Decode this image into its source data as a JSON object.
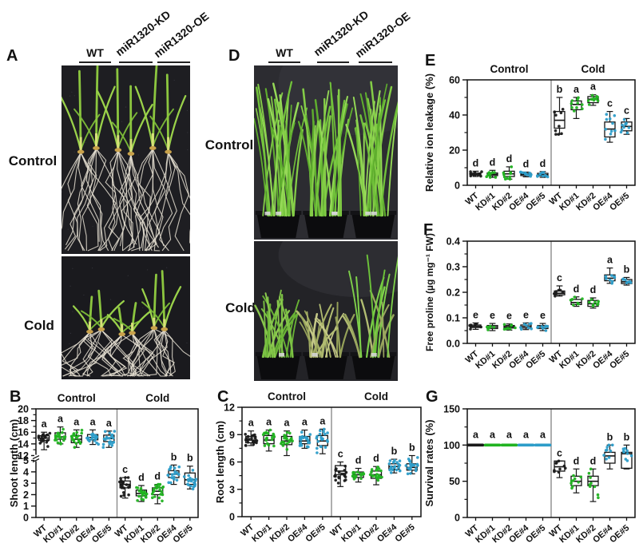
{
  "palette": {
    "wt": "#1a1a1a",
    "kd": "#21b321",
    "oe": "#2d9dc9",
    "divider": "#8c8c8c"
  },
  "panels": {
    "A": {
      "letter": "A",
      "col_labels": [
        "WT",
        "miR1320-KD",
        "miR1320-OE"
      ],
      "row_labels": [
        "Control",
        "Cold"
      ]
    },
    "B": {
      "letter": "B"
    },
    "C": {
      "letter": "C"
    },
    "D": {
      "letter": "D",
      "col_labels": [
        "WT",
        "miR1320-KD",
        "miR1320-OE"
      ],
      "row_labels": [
        "Control",
        "Cold"
      ]
    },
    "E": {
      "letter": "E"
    },
    "F": {
      "letter": "F"
    },
    "G": {
      "letter": "G"
    }
  },
  "chart_data": [
    {
      "panel": "B",
      "type": "box",
      "ylabel": "Shoot length (cm)",
      "headers": [
        "Control",
        "Cold"
      ],
      "axis": {
        "broken": true,
        "lower": {
          "min": 0,
          "max": 5,
          "ticks": [
            0,
            1,
            2,
            3,
            4,
            5
          ]
        },
        "upper": {
          "min": 12,
          "max": 20,
          "ticks": [
            12,
            14,
            16,
            18,
            20
          ],
          "minors": [
            13,
            15,
            17,
            19
          ]
        }
      },
      "categories": [
        "WT",
        "KD#1",
        "KD#2",
        "OE#4",
        "OE#5"
      ],
      "colors": [
        "wt",
        "kd",
        "kd",
        "oe",
        "oe"
      ],
      "n_points": 20,
      "groups": [
        {
          "name": "Control",
          "letters": [
            "a",
            "a",
            "a",
            "a",
            "a"
          ],
          "boxes": [
            [
              13.0,
              14.6,
              15.0,
              15.4,
              16.0
            ],
            [
              14.0,
              14.8,
              15.2,
              15.9,
              16.9
            ],
            [
              13.4,
              14.2,
              14.8,
              15.4,
              16.4
            ],
            [
              13.9,
              14.7,
              15.1,
              15.6,
              16.4
            ],
            [
              13.4,
              14.4,
              14.9,
              15.5,
              16.2
            ]
          ]
        },
        {
          "name": "Cold",
          "letters": [
            "c",
            "d",
            "d",
            "b",
            "b"
          ],
          "boxes": [
            [
              1.7,
              2.6,
              2.9,
              3.2,
              3.5
            ],
            [
              1.4,
              1.9,
              2.1,
              2.4,
              2.8
            ],
            [
              1.2,
              2.0,
              2.3,
              2.6,
              2.9
            ],
            [
              2.9,
              3.5,
              3.8,
              4.1,
              4.6
            ],
            [
              2.5,
              2.9,
              3.3,
              3.9,
              4.5
            ]
          ]
        }
      ]
    },
    {
      "panel": "C",
      "type": "box",
      "ylabel": "Root length (cm)",
      "headers": [
        "Control",
        "Cold"
      ],
      "axis": {
        "min": 0,
        "max": 12,
        "ticks": [
          0,
          3,
          6,
          9,
          12
        ],
        "minors": [
          1.5,
          4.5,
          7.5,
          10.5
        ]
      },
      "categories": [
        "WT",
        "KD#1",
        "KD#2",
        "OE#4",
        "OE#5"
      ],
      "colors": [
        "wt",
        "kd",
        "kd",
        "oe",
        "oe"
      ],
      "n_points": 20,
      "groups": [
        {
          "name": "Control",
          "letters": [
            "a",
            "a",
            "a",
            "a",
            "a"
          ],
          "boxes": [
            [
              7.8,
              8.1,
              8.4,
              8.8,
              9.4
            ],
            [
              7.2,
              8.0,
              8.4,
              8.9,
              9.5
            ],
            [
              6.7,
              7.9,
              8.3,
              8.8,
              9.4
            ],
            [
              7.5,
              8.0,
              8.3,
              8.8,
              9.5
            ],
            [
              6.9,
              7.8,
              8.3,
              8.9,
              9.6
            ]
          ]
        },
        {
          "name": "Cold",
          "letters": [
            "c",
            "d",
            "d",
            "b",
            "b"
          ],
          "boxes": [
            [
              3.3,
              4.6,
              5.0,
              5.6,
              6.0
            ],
            [
              3.8,
              4.3,
              4.6,
              4.9,
              5.3
            ],
            [
              3.5,
              4.2,
              4.6,
              5.0,
              5.5
            ],
            [
              4.8,
              5.2,
              5.5,
              5.8,
              6.3
            ],
            [
              4.7,
              5.1,
              5.4,
              5.8,
              6.7
            ]
          ]
        }
      ]
    },
    {
      "panel": "E",
      "type": "box",
      "ylabel": "Relative ion leakage (%)",
      "headers": [
        "Control",
        "Cold"
      ],
      "axis": {
        "min": 0,
        "max": 60,
        "ticks": [
          0,
          20,
          40,
          60
        ],
        "minors": [
          10,
          30,
          50
        ]
      },
      "categories": [
        "WT",
        "KD#1",
        "KD#2",
        "OE#4",
        "OE#5"
      ],
      "colors": [
        "wt",
        "kd",
        "kd",
        "oe",
        "oe"
      ],
      "n_points": 10,
      "groups": [
        {
          "name": "Control",
          "letters": [
            "d",
            "d",
            "d",
            "d",
            "d"
          ],
          "boxes": [
            [
              5.0,
              5.8,
              6.3,
              7.0,
              8.0
            ],
            [
              4.5,
              5.5,
              6.2,
              7.0,
              8.5
            ],
            [
              3.5,
              5.0,
              6.5,
              8.0,
              10.5
            ],
            [
              4.8,
              5.5,
              6.2,
              6.8,
              7.5
            ],
            [
              4.5,
              5.3,
              6.0,
              6.8,
              7.8
            ]
          ]
        },
        {
          "name": "Cold",
          "letters": [
            "b",
            "a",
            "a",
            "c",
            "c"
          ],
          "boxes": [
            [
              29,
              32.5,
              37,
              42,
              50
            ],
            [
              38,
              43,
              46,
              48,
              50
            ],
            [
              45.5,
              47,
              49,
              50.5,
              51.5
            ],
            [
              24.5,
              27.5,
              32,
              36,
              42
            ],
            [
              29,
              31,
              33.5,
              36,
              38
            ]
          ]
        }
      ]
    },
    {
      "panel": "F",
      "type": "box",
      "ylabel": "Free proline (µg mg⁻¹ FW)",
      "headers": null,
      "axis": {
        "min": 0,
        "max": 0.4,
        "ticks": [
          0,
          0.1,
          0.2,
          0.3,
          0.4
        ],
        "minors": [
          0.05,
          0.15,
          0.25,
          0.35
        ],
        "decimals": 1
      },
      "categories": [
        "WT",
        "KD#1",
        "KD#2",
        "OE#4",
        "OE#5"
      ],
      "colors": [
        "wt",
        "kd",
        "kd",
        "oe",
        "oe"
      ],
      "n_points": 8,
      "groups": [
        {
          "name": "Control",
          "letters": [
            "e",
            "e",
            "e",
            "e",
            "e"
          ],
          "boxes": [
            [
              0.055,
              0.062,
              0.067,
              0.072,
              0.08
            ],
            [
              0.05,
              0.058,
              0.064,
              0.07,
              0.078
            ],
            [
              0.052,
              0.06,
              0.065,
              0.07,
              0.076
            ],
            [
              0.054,
              0.06,
              0.066,
              0.072,
              0.08
            ],
            [
              0.05,
              0.058,
              0.064,
              0.07,
              0.078
            ]
          ]
        },
        {
          "name": "Cold",
          "letters": [
            "c",
            "d",
            "d",
            "a",
            "b"
          ],
          "boxes": [
            [
              0.185,
              0.19,
              0.196,
              0.205,
              0.225
            ],
            [
              0.145,
              0.152,
              0.16,
              0.172,
              0.182
            ],
            [
              0.138,
              0.145,
              0.155,
              0.168,
              0.178
            ],
            [
              0.235,
              0.245,
              0.255,
              0.268,
              0.295
            ],
            [
              0.228,
              0.234,
              0.241,
              0.25,
              0.258
            ]
          ]
        }
      ]
    },
    {
      "panel": "G",
      "type": "box",
      "ylabel": "Survival rates (%)",
      "headers": null,
      "axis": {
        "min": 0,
        "max": 150,
        "ticks": [
          0,
          50,
          100,
          150
        ],
        "minors": [
          25,
          75,
          125
        ]
      },
      "categories": [
        "WT",
        "KD#1",
        "KD#2",
        "OE#4",
        "OE#5"
      ],
      "colors": [
        "wt",
        "kd",
        "kd",
        "oe",
        "oe"
      ],
      "n_points": 9,
      "groups": [
        {
          "name": "Control",
          "letters": [
            "a",
            "a",
            "a",
            "a",
            "a"
          ],
          "boxes": [
            [
              100,
              100,
              100,
              100,
              100
            ],
            [
              100,
              100,
              100,
              100,
              100
            ],
            [
              100,
              100,
              100,
              100,
              100
            ],
            [
              100,
              100,
              100,
              100,
              100
            ],
            [
              100,
              100,
              100,
              100,
              100
            ]
          ]
        },
        {
          "name": "Cold",
          "letters": [
            "c",
            "d",
            "d",
            "b",
            "b"
          ],
          "boxes": [
            [
              55,
              64,
              70,
              78,
              78
            ],
            [
              34,
              44,
              50,
              57,
              67
            ],
            [
              22,
              44,
              50,
              57,
              67
            ],
            [
              67,
              75,
              85,
              90,
              100
            ],
            [
              67,
              68,
              88,
              90,
              100
            ]
          ]
        }
      ]
    }
  ]
}
